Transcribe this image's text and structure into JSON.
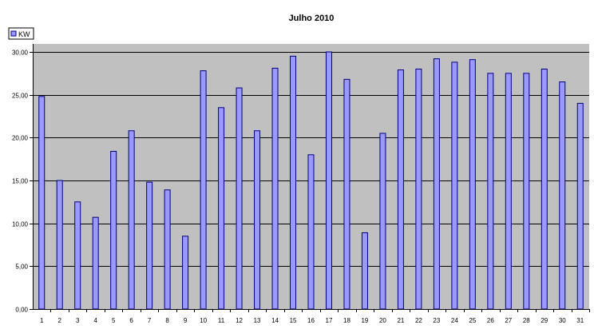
{
  "chart_data": {
    "type": "bar",
    "title": "Julho 2010",
    "xlabel": "",
    "ylabel": "",
    "ylim": [
      0,
      30
    ],
    "yticks": [
      "0,00",
      "5,00",
      "10,00",
      "15,00",
      "20,00",
      "25,00",
      "30,00"
    ],
    "categories": [
      "1",
      "2",
      "3",
      "4",
      "5",
      "6",
      "7",
      "8",
      "9",
      "10",
      "11",
      "12",
      "13",
      "14",
      "15",
      "16",
      "17",
      "18",
      "19",
      "20",
      "21",
      "22",
      "23",
      "24",
      "25",
      "26",
      "27",
      "28",
      "29",
      "30",
      "31"
    ],
    "series": [
      {
        "name": "KW",
        "values": [
          24.8,
          15.0,
          12.5,
          10.7,
          18.4,
          20.8,
          14.8,
          13.9,
          8.5,
          27.8,
          23.5,
          25.8,
          20.8,
          28.1,
          29.5,
          18.0,
          30.0,
          26.8,
          8.9,
          20.5,
          27.9,
          28.0,
          29.2,
          28.8,
          29.1,
          27.5,
          27.5,
          27.5,
          28.0,
          26.5,
          24.0
        ]
      }
    ],
    "grid": true,
    "legend_position": "top-left",
    "colors": {
      "bar_fill": "#9999ff",
      "bar_stroke": "#000080",
      "plot_background": "#c0c0c0",
      "gridline": "#000000"
    }
  }
}
